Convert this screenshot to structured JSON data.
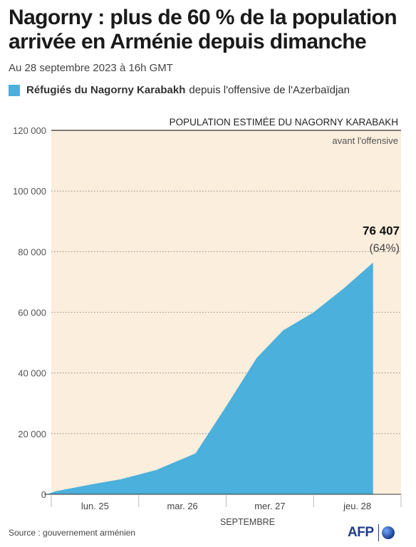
{
  "header": {
    "title": "Nagorny : plus de 60 % de la population arrivée en Arménie depuis dimanche",
    "subtitle": "Au 28 septembre 2023 à 16h GMT"
  },
  "legend": {
    "strong": "Réfugiés du Nagorny Karabakh",
    "rest": "depuis l'offensive de l'Azerbaïdjan",
    "color": "#4bb0db"
  },
  "chart_data": {
    "type": "area",
    "ylim": [
      0,
      120000
    ],
    "yticks": [
      0,
      20000,
      40000,
      60000,
      80000,
      100000,
      120000
    ],
    "ytick_labels": [
      "0",
      "20 000",
      "40 000",
      "60 000",
      "80 000",
      "100 000",
      "120 000"
    ],
    "xlim": [
      0,
      4
    ],
    "xtick_dividers": [
      0,
      1,
      2,
      3,
      4
    ],
    "categories": [
      {
        "label": "lun. 25",
        "center": 0.5
      },
      {
        "label": "mar. 26",
        "center": 1.5
      },
      {
        "label": "mer. 27",
        "center": 2.5
      },
      {
        "label": "jeu. 28",
        "center": 3.5
      }
    ],
    "xlabel": "SEPTEMBRE",
    "series": [
      {
        "color": "#4bb0db",
        "x": [
          -0.05,
          0.05,
          0.5,
          0.8,
          1.2,
          1.65,
          2.0,
          2.35,
          2.65,
          3.0,
          3.35,
          3.68
        ],
        "y": [
          0,
          1000,
          3500,
          5000,
          8000,
          13500,
          29000,
          45000,
          54000,
          60000,
          68000,
          76407
        ]
      }
    ],
    "reference_band": {
      "value": 120000,
      "label": "POPULATION ESTIMÉE DU NAGORNY KARABAKH",
      "sublabel": "avant l'offensive",
      "color": "#fbeedd"
    },
    "annotation": {
      "value_label": "76 407",
      "pct_label": "(64%)"
    },
    "grid": true
  },
  "footer": {
    "source": "Source : gouvernement arménien",
    "brand": "AFP"
  }
}
